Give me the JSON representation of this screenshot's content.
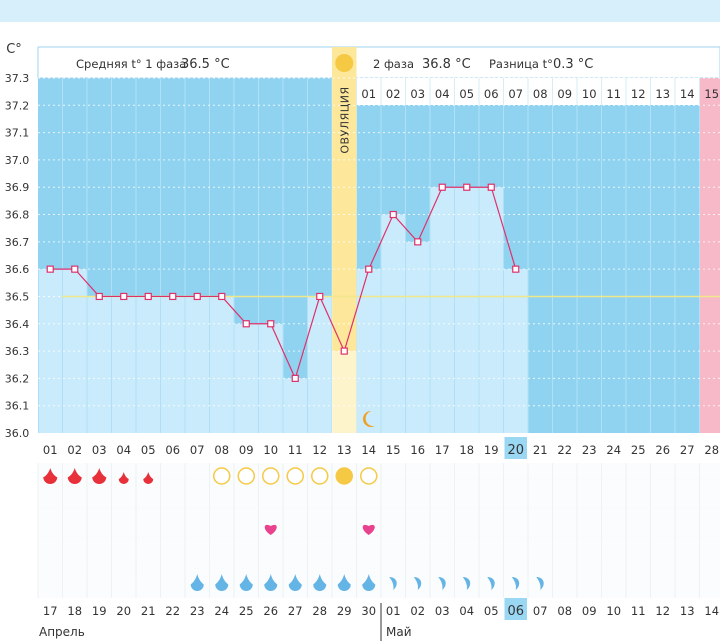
{
  "chart_data": {
    "type": "line",
    "title": "",
    "ylabel": "C°",
    "ylim": [
      36.0,
      37.3
    ],
    "y_ticks": [
      "36.0",
      "36.1",
      "36.2",
      "36.3",
      "36.4",
      "36.5",
      "36.6",
      "36.7",
      "36.8",
      "36.9",
      "37.0",
      "37.1",
      "37.2",
      "37.3"
    ],
    "grid": true,
    "cycle_days": [
      "01",
      "02",
      "03",
      "04",
      "05",
      "06",
      "07",
      "08",
      "09",
      "10",
      "11",
      "12",
      "13",
      "14",
      "15",
      "16",
      "17",
      "18",
      "19",
      "20",
      "21",
      "22",
      "23",
      "24",
      "25",
      "26",
      "27",
      "28"
    ],
    "current_day_index": 19,
    "temperatures": [
      36.6,
      36.6,
      36.5,
      36.5,
      36.5,
      36.5,
      36.5,
      36.5,
      36.4,
      36.4,
      36.2,
      36.5,
      36.3,
      36.6,
      36.8,
      36.7,
      36.9,
      36.9,
      36.9,
      36.6
    ],
    "ovulation_day_index": 12,
    "coverline": 36.5,
    "phase1_label": "Средняя t° 1 фаза",
    "phase1_value": "36.5 °C",
    "phase2_label": "2 фаза",
    "phase2_value": "36.8 °C",
    "diff_label": "Разница t°",
    "diff_value": "0.3 °C",
    "ovulation_label": "ОВУЛЯЦИЯ",
    "phase2_days": [
      "01",
      "02",
      "03",
      "04",
      "05",
      "06",
      "07",
      "08",
      "09",
      "10",
      "11",
      "12",
      "13",
      "14",
      "15"
    ],
    "dates": [
      "17",
      "18",
      "19",
      "20",
      "21",
      "22",
      "23",
      "24",
      "25",
      "26",
      "27",
      "28",
      "29",
      "30",
      "01",
      "02",
      "03",
      "04",
      "05",
      "06",
      "07",
      "08",
      "09",
      "10",
      "11",
      "12",
      "13",
      "14"
    ],
    "weekend_indices": [
      3,
      4,
      10,
      11,
      17,
      18,
      24,
      25
    ],
    "today_date_index": 19,
    "month1": "Апрель",
    "month2": "Май",
    "menstruation": [
      "large",
      "large",
      "large",
      "small",
      "small"
    ],
    "cervical_circles": [
      7,
      8,
      9,
      10,
      11,
      12,
      13
    ],
    "cervical_filled": [
      12
    ],
    "hearts": [
      9,
      13
    ],
    "mucus_drops": [
      6,
      7,
      8,
      9,
      10,
      11,
      12,
      13
    ],
    "mucus_swirls": [
      14,
      15,
      16,
      17,
      18,
      19,
      20
    ],
    "moon_index": 13,
    "colors": {
      "sky": "#8fd3f1",
      "bar": "#c9ebfb",
      "line": "#e0306a",
      "ovulation": "#fce79a",
      "pink_band": "#f7b8c8",
      "blood": "#e8303a",
      "drop": "#64b4e6",
      "heart": "#e8438c",
      "sun": "#f6c944",
      "coverline": "#f0e88a"
    }
  }
}
